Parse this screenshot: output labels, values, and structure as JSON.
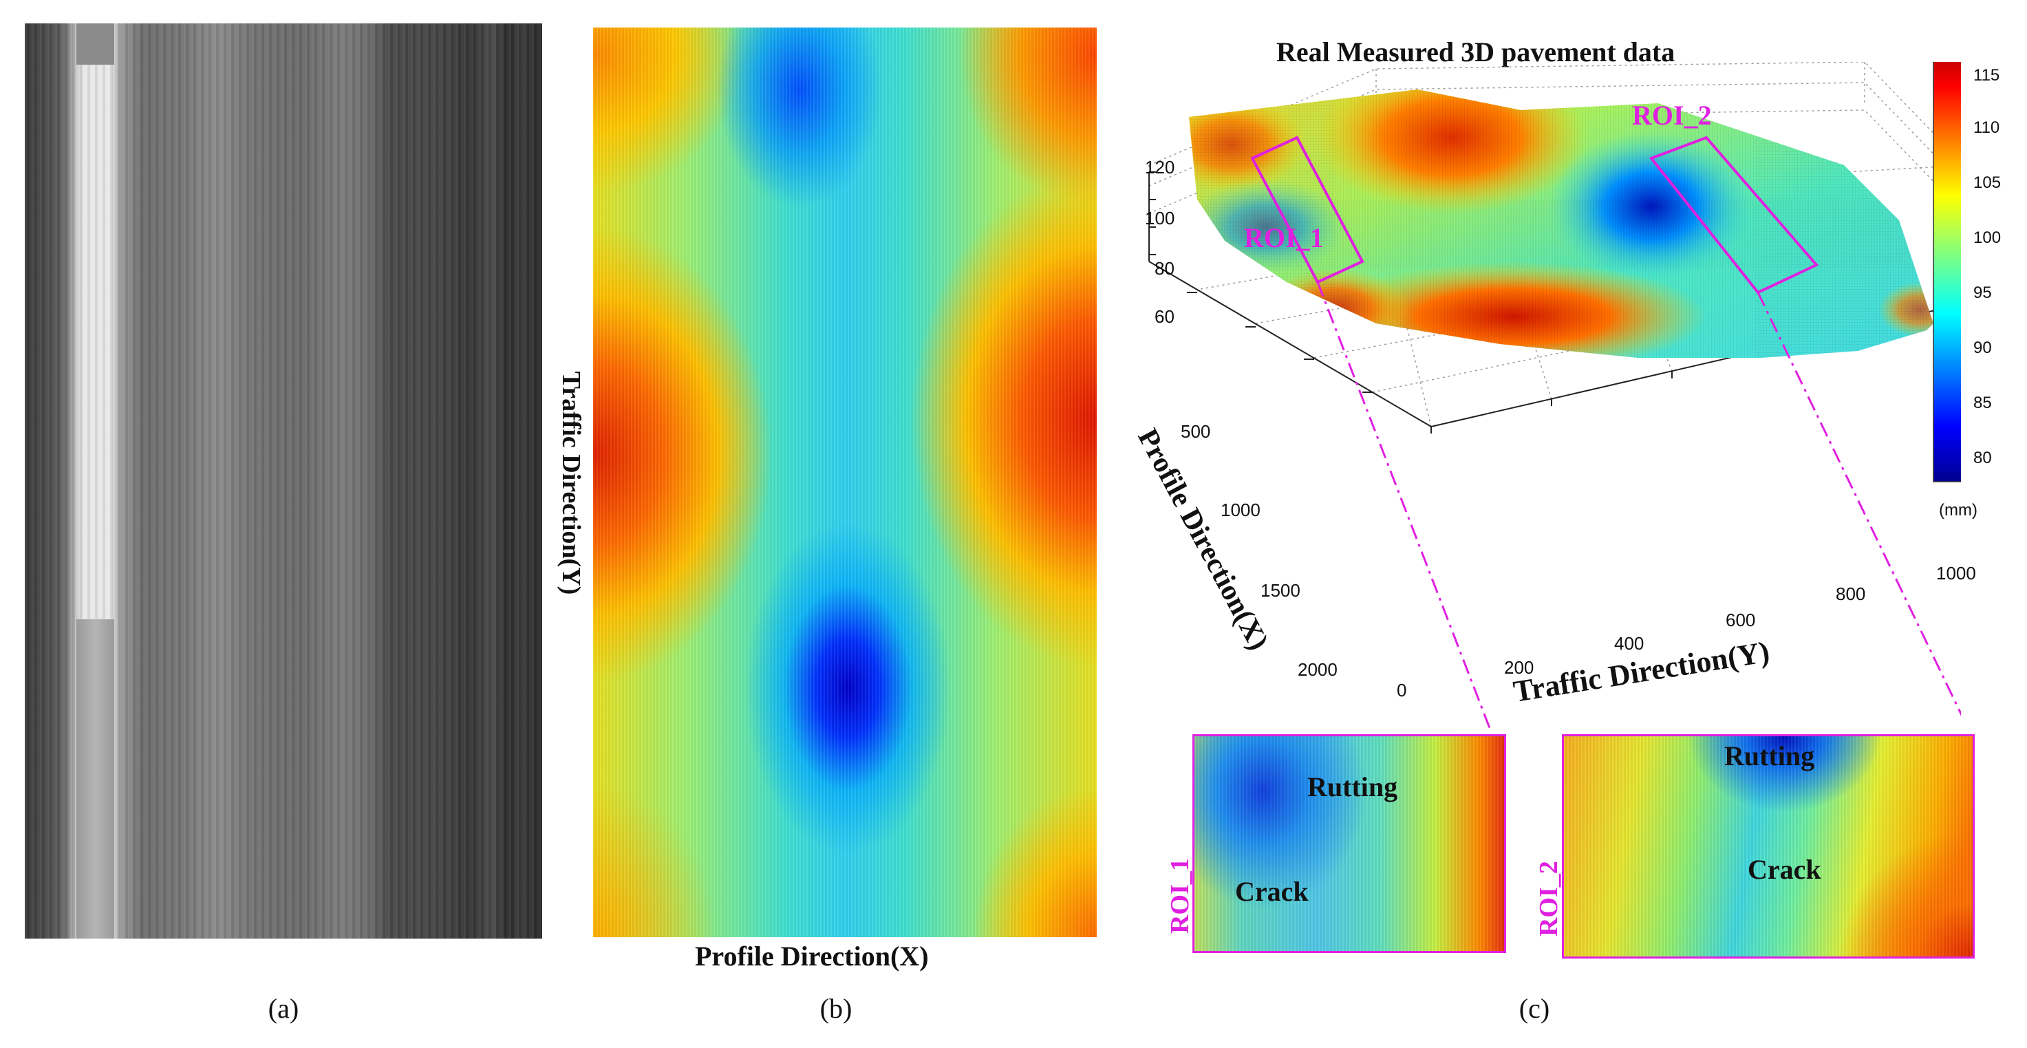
{
  "panels": {
    "a": {
      "caption": "(a)"
    },
    "b": {
      "caption": "(b)",
      "y_label": "Traffic Direction(Y)",
      "x_label": "Profile Direction(X)"
    },
    "c": {
      "caption": "(c)",
      "title": "Real Measured 3D pavement data",
      "roi1_label": "ROI_1",
      "roi2_label": "ROI_2",
      "z_ticks": [
        "120",
        "100",
        "80",
        "60"
      ],
      "profile_ticks": [
        "500",
        "1000",
        "1500",
        "2000"
      ],
      "traffic_ticks": [
        "0",
        "200",
        "400",
        "600",
        "800",
        "1000"
      ],
      "profile_axis_label": "Profile Direction(X)",
      "traffic_axis_label": "Traffic Direction(Y)",
      "colorbar_ticks": [
        "115",
        "110",
        "105",
        "100",
        "95",
        "90",
        "85",
        "80"
      ],
      "colorbar_unit": "(mm)",
      "inset1": {
        "side_label": "ROI_1",
        "rutting": "Rutting",
        "crack": "Crack"
      },
      "inset2": {
        "side_label": "ROI_2",
        "rutting": "Rutting",
        "crack": "Crack"
      }
    }
  },
  "colors": {
    "roi": "#e020e0",
    "jet_low": "#00008f",
    "jet_high": "#800000"
  }
}
